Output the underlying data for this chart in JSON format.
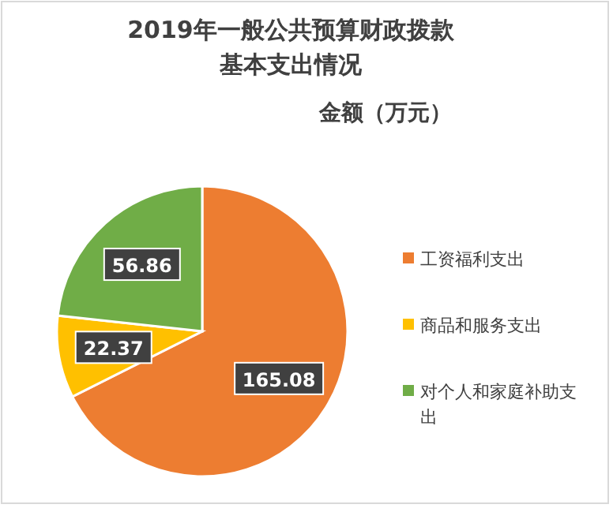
{
  "chart_data": {
    "type": "pie",
    "title": "2019年一般公共预算财政拨款基本支出情况",
    "subtitle": "金额（万元）",
    "categories": [
      "工资福利支出",
      "商品和服务支出",
      "对个人和家庭补助支出"
    ],
    "values": [
      165.08,
      22.37,
      56.86
    ],
    "colors": [
      "#ed7d31",
      "#ffc000",
      "#70ad47"
    ],
    "data_labels": true,
    "legend": "right"
  }
}
